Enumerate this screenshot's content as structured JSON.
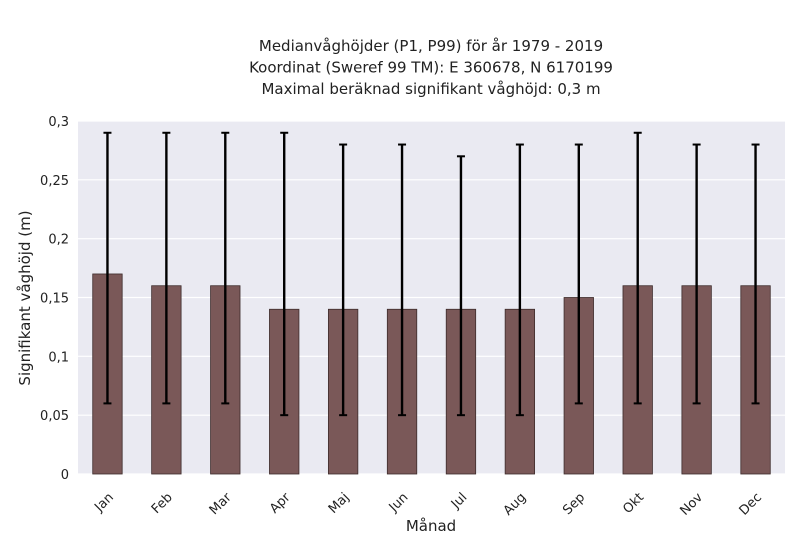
{
  "chart_data": {
    "type": "bar",
    "title_lines": [
      "Medianvåghöjder (P1, P99) för år 1979 - 2019",
      "Koordinat (Sweref 99 TM): E 360678, N 6170199",
      "Maximal beräknad signifikant våghöjd: 0,3 m"
    ],
    "xlabel": "Månad",
    "ylabel": "Signifikant våghöjd (m)",
    "categories": [
      "Jan",
      "Feb",
      "Mar",
      "Apr",
      "Maj",
      "Jun",
      "Jul",
      "Aug",
      "Sep",
      "Okt",
      "Nov",
      "Dec"
    ],
    "values": [
      0.17,
      0.16,
      0.16,
      0.14,
      0.14,
      0.14,
      0.14,
      0.14,
      0.15,
      0.16,
      0.16,
      0.16
    ],
    "error_low": [
      0.06,
      0.06,
      0.06,
      0.05,
      0.05,
      0.05,
      0.05,
      0.05,
      0.06,
      0.06,
      0.06,
      0.06
    ],
    "error_high": [
      0.29,
      0.29,
      0.29,
      0.29,
      0.28,
      0.28,
      0.27,
      0.28,
      0.28,
      0.29,
      0.28,
      0.28
    ],
    "ylim": [
      0,
      0.3
    ],
    "yticks": [
      0,
      0.05,
      0.1,
      0.15,
      0.2,
      0.25,
      0.3
    ],
    "ytick_labels": [
      "0",
      "0,05",
      "0,1",
      "0,15",
      "0,2",
      "0,25",
      "0,3"
    ],
    "grid": true,
    "colors": {
      "bar": "#7a5858",
      "bar_edge": "#3d2b2b",
      "errorbar": "#000000",
      "plot_background": "#eaeaf2",
      "grid": "#ffffff"
    }
  }
}
